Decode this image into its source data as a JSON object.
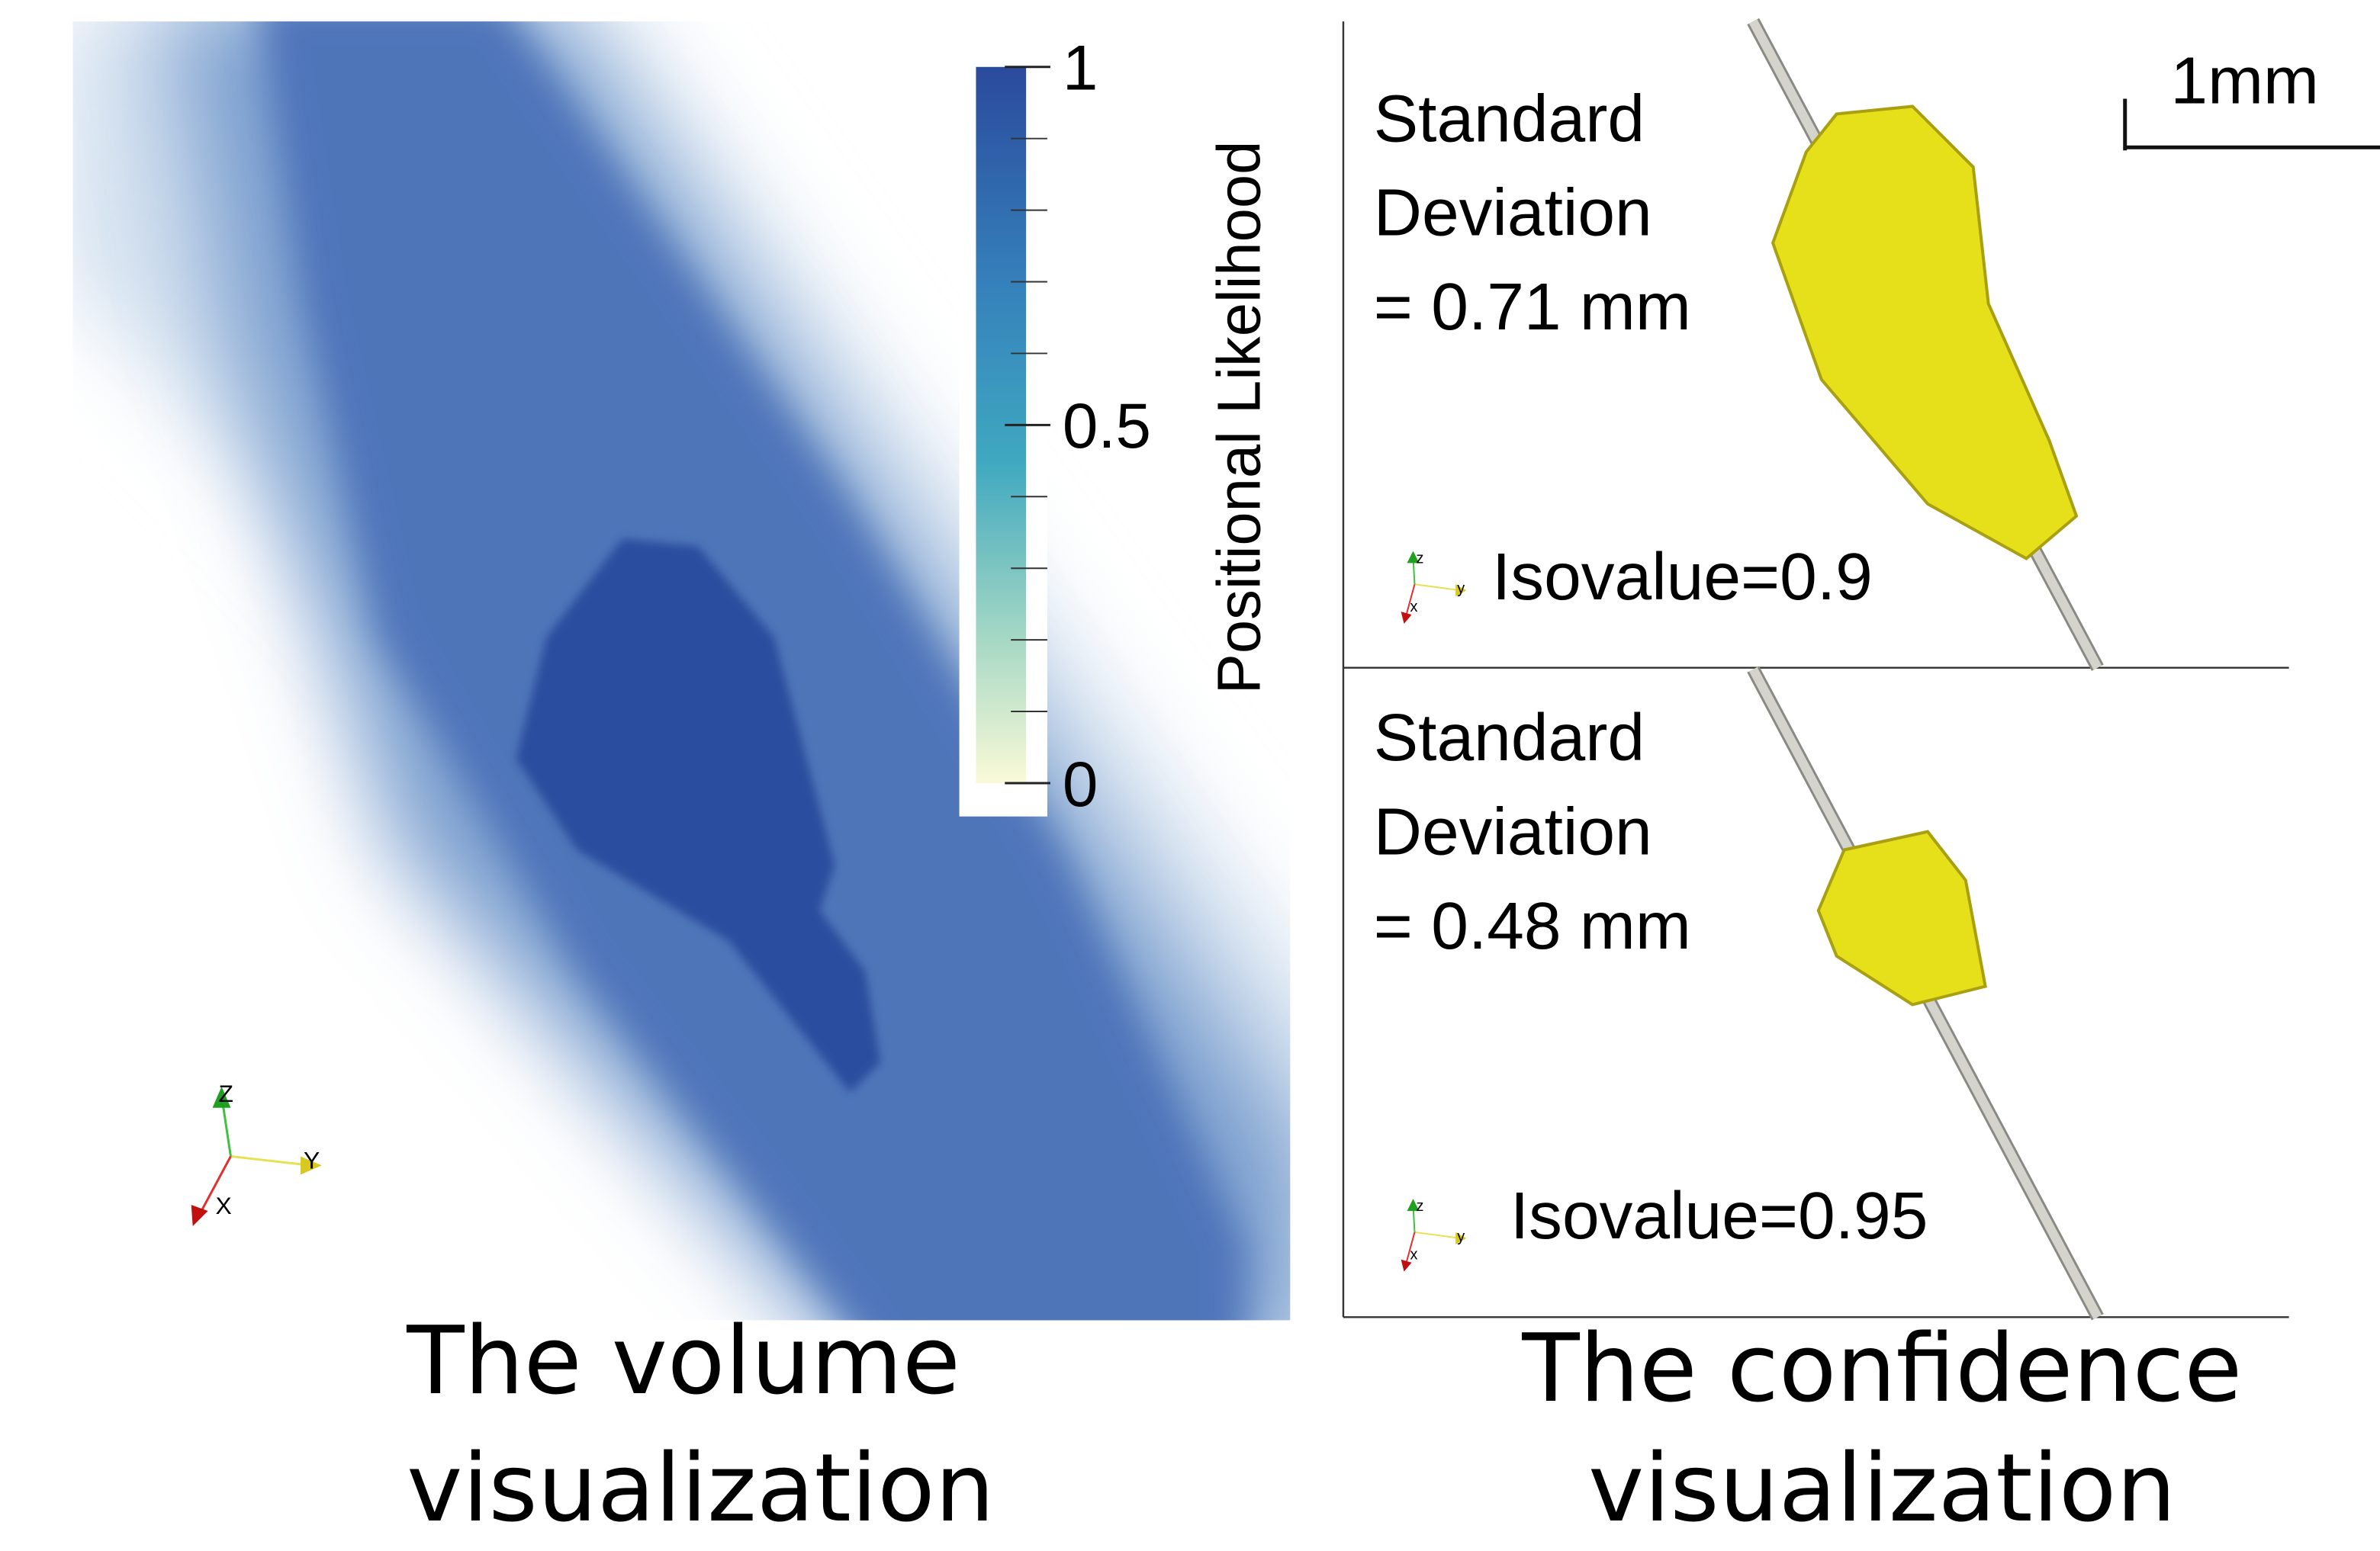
{
  "volume_panel": {
    "colorbar": {
      "label": "Positional Likelihood",
      "ticks": [
        0,
        0.5,
        1
      ]
    },
    "axes_labels": [
      "X",
      "Y",
      "Z"
    ],
    "caption": [
      "The volume",
      "visualization"
    ]
  },
  "confidence_panels": [
    {
      "standard_deviation": [
        "Standard",
        "Deviation",
        "= 0.71 mm"
      ],
      "isovalue": "Isovalue=0.9",
      "axes_labels": [
        "x",
        "y",
        "z"
      ]
    },
    {
      "standard_deviation": [
        "Standard",
        "Deviation",
        "= 0.48 mm"
      ],
      "isovalue": "Isovalue=0.95",
      "axes_labels": [
        "x",
        "y",
        "z"
      ]
    }
  ],
  "scale_bar": "1mm",
  "caption": [
    "The confidence",
    "visualization"
  ]
}
